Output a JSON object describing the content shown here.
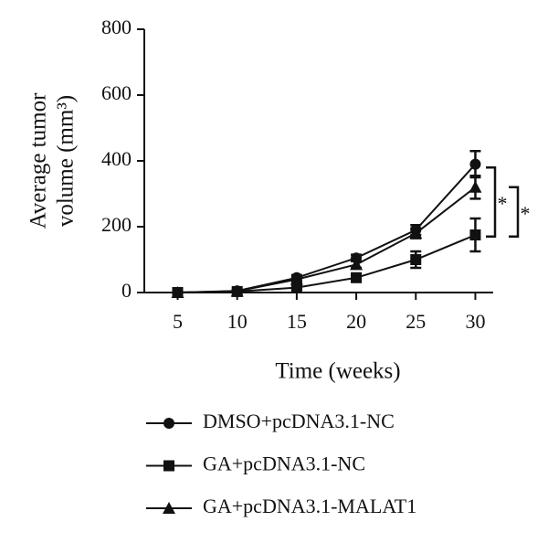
{
  "chart_data": {
    "type": "line",
    "ylabel": [
      "Average tumor",
      "volume (mm³)"
    ],
    "xlabel": "Time (weeks)",
    "x": [
      5,
      10,
      15,
      20,
      25,
      30
    ],
    "series": [
      {
        "name": "DMSO+pcDNA3.1-NC",
        "color": "#111111",
        "marker": "circle",
        "values": [
          0,
          5,
          45,
          105,
          190,
          390
        ],
        "errors": [
          0,
          3,
          8,
          10,
          15,
          40
        ]
      },
      {
        "name": "GA+pcDNA3.1-NC",
        "color": "#111111",
        "marker": "square",
        "values": [
          0,
          3,
          15,
          45,
          100,
          175
        ],
        "errors": [
          0,
          2,
          5,
          10,
          25,
          50
        ]
      },
      {
        "name": "GA+pcDNA3.1-MALAT1",
        "color": "#111111",
        "marker": "triangle",
        "values": [
          0,
          4,
          40,
          85,
          180,
          320
        ],
        "errors": [
          0,
          3,
          8,
          10,
          15,
          35
        ]
      }
    ],
    "annotations": [
      {
        "text": "*",
        "y": [
          380,
          170
        ]
      },
      {
        "text": "*",
        "y": [
          320,
          170
        ]
      }
    ],
    "xlim": [
      2.2,
      31.5
    ],
    "xticks": [
      5,
      10,
      15,
      20,
      25,
      30
    ],
    "ylim": [
      0,
      800
    ],
    "yticks": [
      0,
      200,
      400,
      600,
      800
    ],
    "legend": "bottom"
  }
}
